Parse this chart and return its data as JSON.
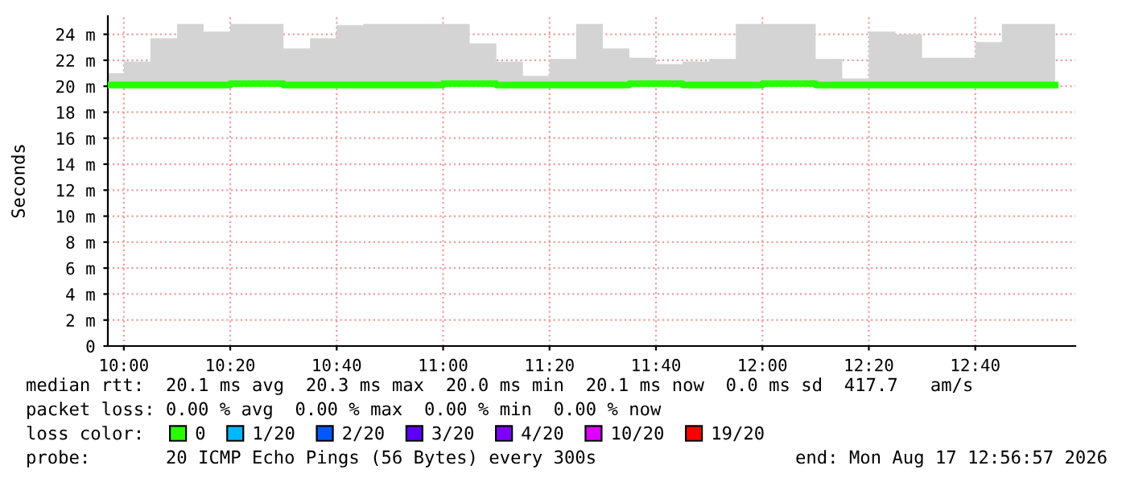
{
  "chart_data": {
    "type": "step",
    "ylabel": "Seconds",
    "x": [
      9.95,
      10.0,
      10.0833,
      10.1667,
      10.25,
      10.3333,
      10.4167,
      10.5,
      10.5833,
      10.6667,
      10.75,
      10.8333,
      10.9167,
      11.0,
      11.0833,
      11.1667,
      11.25,
      11.3333,
      11.4167,
      11.5,
      11.5833,
      11.6667,
      11.75,
      11.8333,
      11.9167,
      12.0,
      12.0833,
      12.1667,
      12.25,
      12.3333,
      12.4167,
      12.5,
      12.5833,
      12.6667,
      12.75,
      12.8333,
      12.9167
    ],
    "series": [
      {
        "name": "0",
        "color": "#26ff00",
        "values": [
          20.1,
          20.1,
          20.1,
          20.1,
          20.1,
          20.2,
          20.2,
          20.1,
          20.1,
          20.1,
          20.1,
          20.1,
          20.1,
          20.2,
          20.2,
          20.1,
          20.1,
          20.1,
          20.1,
          20.1,
          20.2,
          20.2,
          20.1,
          20.1,
          20.1,
          20.2,
          20.2,
          20.1,
          20.1,
          20.1,
          20.1,
          20.1,
          20.1,
          20.1,
          20.1,
          20.1,
          20.1
        ],
        "lower": [
          20.0,
          20.0,
          20.0,
          20.0,
          20.0,
          20.0,
          20.0,
          20.0,
          20.0,
          20.0,
          20.0,
          20.0,
          20.0,
          20.0,
          20.0,
          20.0,
          20.0,
          20.0,
          20.0,
          20.0,
          20.0,
          20.0,
          20.0,
          20.0,
          20.0,
          20.0,
          20.0,
          20.0,
          20.0,
          20.0,
          20.0,
          20.0,
          20.0,
          20.0,
          20.0,
          20.0,
          20.0
        ],
        "upper": [
          21.0,
          21.9,
          23.7,
          24.8,
          24.2,
          24.8,
          24.8,
          22.9,
          23.7,
          24.7,
          24.8,
          24.8,
          24.8,
          24.8,
          23.3,
          21.9,
          20.8,
          22.1,
          24.8,
          22.9,
          22.2,
          21.7,
          21.9,
          22.1,
          24.8,
          24.8,
          24.8,
          22.1,
          20.6,
          24.2,
          24.0,
          22.2,
          22.2,
          23.4,
          24.8,
          24.8,
          24.8
        ]
      },
      {
        "name": "1/20",
        "color": "#00b8ff",
        "values": [
          null,
          null,
          null,
          null,
          null,
          null,
          null,
          null,
          null,
          null,
          null,
          null,
          null,
          null,
          null,
          null,
          null,
          null,
          null,
          null,
          null,
          null,
          null,
          null,
          null,
          null,
          null,
          null,
          null,
          null,
          null,
          null,
          null,
          null,
          null,
          null,
          null
        ]
      },
      {
        "name": "2/20",
        "color": "#0059ff",
        "values": [
          null,
          null,
          null,
          null,
          null,
          null,
          null,
          null,
          null,
          null,
          null,
          null,
          null,
          null,
          null,
          null,
          null,
          null,
          null,
          null,
          null,
          null,
          null,
          null,
          null,
          null,
          null,
          null,
          null,
          null,
          null,
          null,
          null,
          null,
          null,
          null,
          null
        ]
      },
      {
        "name": "3/20",
        "color": "#5e00ff",
        "values": [
          null,
          null,
          null,
          null,
          null,
          null,
          null,
          null,
          null,
          null,
          null,
          null,
          null,
          null,
          null,
          null,
          null,
          null,
          null,
          null,
          null,
          null,
          null,
          null,
          null,
          null,
          null,
          null,
          null,
          null,
          null,
          null,
          null,
          null,
          null,
          null,
          null
        ]
      },
      {
        "name": "4/20",
        "color": "#7e00ff",
        "values": [
          null,
          null,
          null,
          null,
          null,
          null,
          null,
          null,
          null,
          null,
          null,
          null,
          null,
          null,
          null,
          null,
          null,
          null,
          null,
          null,
          null,
          null,
          null,
          null,
          null,
          null,
          null,
          null,
          null,
          null,
          null,
          null,
          null,
          null,
          null,
          null,
          null
        ]
      },
      {
        "name": "10/20",
        "color": "#dd00ff",
        "values": [
          null,
          null,
          null,
          null,
          null,
          null,
          null,
          null,
          null,
          null,
          null,
          null,
          null,
          null,
          null,
          null,
          null,
          null,
          null,
          null,
          null,
          null,
          null,
          null,
          null,
          null,
          null,
          null,
          null,
          null,
          null,
          null,
          null,
          null,
          null,
          null,
          null
        ]
      },
      {
        "name": "19/20",
        "color": "#ff0000",
        "values": [
          null,
          null,
          null,
          null,
          null,
          null,
          null,
          null,
          null,
          null,
          null,
          null,
          null,
          null,
          null,
          null,
          null,
          null,
          null,
          null,
          null,
          null,
          null,
          null,
          null,
          null,
          null,
          null,
          null,
          null,
          null,
          null,
          null,
          null,
          null,
          null,
          null
        ]
      }
    ],
    "xlim": [
      9.95,
      12.98
    ],
    "xticks": [
      {
        "value": 10.0,
        "label": "10:00"
      },
      {
        "value": 10.3333,
        "label": "10:20"
      },
      {
        "value": 10.6667,
        "label": "10:40"
      },
      {
        "value": 11.0,
        "label": "11:00"
      },
      {
        "value": 11.3333,
        "label": "11:20"
      },
      {
        "value": 11.6667,
        "label": "11:40"
      },
      {
        "value": 12.0,
        "label": "12:00"
      },
      {
        "value": 12.3333,
        "label": "12:20"
      },
      {
        "value": 12.6667,
        "label": "12:40"
      }
    ],
    "ylim": [
      0,
      25.4
    ],
    "yticks": [
      0,
      {
        "value": 2,
        "label": "2 m"
      },
      {
        "value": 4,
        "label": "4 m"
      },
      {
        "value": 6,
        "label": "6 m"
      },
      {
        "value": 8,
        "label": "8 m"
      },
      {
        "value": 10,
        "label": "10 m"
      },
      {
        "value": 12,
        "label": "12 m"
      },
      {
        "value": 14,
        "label": "14 m"
      },
      {
        "value": 16,
        "label": "16 m"
      },
      {
        "value": 18,
        "label": "18 m"
      },
      {
        "value": 20,
        "label": "20 m"
      },
      {
        "value": 22,
        "label": "22 m"
      },
      {
        "value": 24,
        "label": "24 m"
      }
    ],
    "grid": true,
    "legend": "bottom",
    "legend_title": "loss color:",
    "annotations": [
      "median rtt:  20.1 ms avg  20.3 ms max  20.0 ms min  20.1 ms now  0.0 ms sd  417.7   am/s",
      "packet loss: 0.00 % avg  0.00 % max  0.00 % min  0.00 % now",
      "probe:       20 ICMP Echo Pings (56 Bytes) every 300s",
      "end: Mon Aug 17 12:56:57 2026"
    ]
  }
}
